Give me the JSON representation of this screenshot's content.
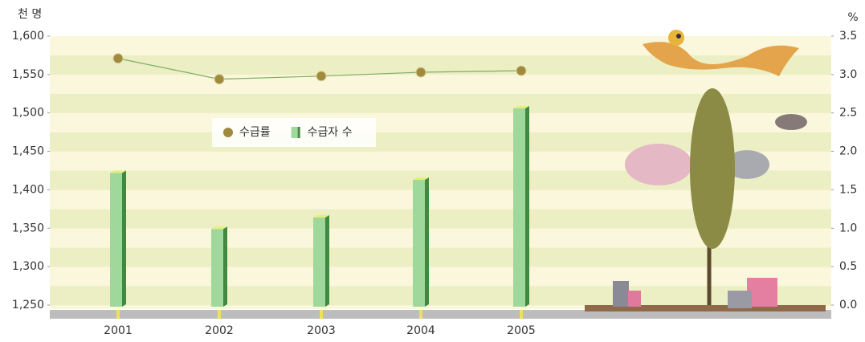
{
  "chart_data": {
    "type": "bar-line",
    "y_unit": "천 명",
    "y2_unit": "%",
    "categories": [
      "2001",
      "2002",
      "2003",
      "2004",
      "2005"
    ],
    "series": [
      {
        "name": "수급률",
        "type": "line",
        "axis": "y2",
        "color": "#a08a3c",
        "line_color": "#7fae62",
        "values": [
          3.21,
          2.94,
          2.98,
          3.03,
          3.05
        ]
      },
      {
        "name": "수급자 수",
        "type": "bar",
        "axis": "y",
        "color": "#9fd89a",
        "side_color": "#3f8a40",
        "values": [
          1422,
          1349,
          1364,
          1413,
          1506
        ]
      }
    ],
    "ylim": [
      1250,
      1600
    ],
    "yticks": [
      {
        "value": 1250,
        "label": "1,250"
      },
      {
        "value": 1300,
        "label": "1,300"
      },
      {
        "value": 1350,
        "label": "1,350"
      },
      {
        "value": 1400,
        "label": "1,400"
      },
      {
        "value": 1450,
        "label": "1,450"
      },
      {
        "value": 1500,
        "label": "1,500"
      },
      {
        "value": 1550,
        "label": "1,550"
      },
      {
        "value": 1600,
        "label": "1,600"
      }
    ],
    "y2lim": [
      0,
      3.5
    ],
    "y2ticks": [
      {
        "value": 0,
        "label": "0.0"
      },
      0.5,
      {
        "value": 1,
        "label": "1.0"
      },
      1.5,
      {
        "value": 2,
        "label": "2.0"
      },
      2.5,
      {
        "value": 3,
        "label": "3.0"
      },
      3.5
    ]
  }
}
